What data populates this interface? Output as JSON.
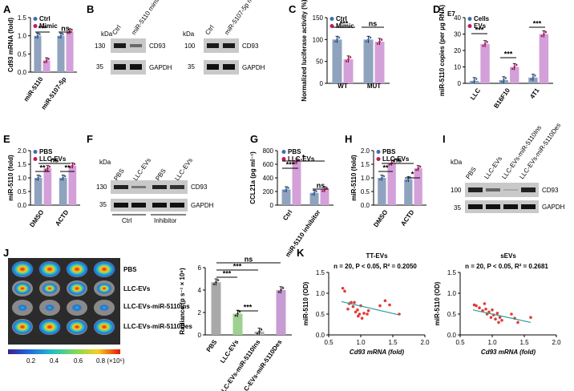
{
  "colors": {
    "ctrl": "#8FA3BE",
    "treat": "#D4A0D9",
    "ctrl_dot": "#3B6FB6",
    "treat_dot": "#C2185B",
    "pbs_bar": "#A9A9A9",
    "llc_bar": "#9ED08F",
    "ins_bar": "#B0B0B0",
    "des_bar": "#C79BD3",
    "fit": "#2A9D9C",
    "pt": "#E53935"
  },
  "panels": {
    "A": "A",
    "B": "B",
    "C": "C",
    "D": "D",
    "E": "E",
    "F": "F",
    "G": "G",
    "H": "H",
    "I": "I",
    "J": "J",
    "K": "K"
  },
  "chart_data": [
    {
      "id": "A",
      "type": "bar",
      "ylabel": "Cd93 mRNA (fold)",
      "ylim": [
        0,
        1.5
      ],
      "yticks": [
        "0.0",
        "0.5",
        "1.0",
        "1.5"
      ],
      "legend": [
        "Ctrl",
        "Mimic"
      ],
      "categories": [
        "miR-5110",
        "miR-5107-5p"
      ],
      "series": [
        {
          "name": "Ctrl",
          "values": [
            1.0,
            1.0
          ]
        },
        {
          "name": "Mimic",
          "values": [
            0.32,
            1.12
          ]
        }
      ],
      "sig": [
        "***",
        "ns"
      ]
    },
    {
      "id": "C",
      "type": "bar",
      "ylabel": "Normalized luciferase activity (%)",
      "ylim": [
        0,
        150
      ],
      "yticks": [
        "0",
        "50",
        "100",
        "150"
      ],
      "legend": [
        "Ctrl",
        "Mimic"
      ],
      "categories": [
        "WT",
        "MUT"
      ],
      "series": [
        {
          "name": "Ctrl",
          "values": [
            100,
            100
          ]
        },
        {
          "name": "Mimic",
          "values": [
            55,
            95
          ]
        }
      ],
      "sig": [
        "***",
        "ns"
      ]
    },
    {
      "id": "D",
      "type": "bar",
      "ylabel": "miR-5110 copies (per µg RNA)",
      "yunit": "E7",
      "ylim": [
        0,
        40
      ],
      "yticks": [
        "0",
        "10",
        "20",
        "30",
        "40"
      ],
      "legend": [
        "Cells",
        "EVs"
      ],
      "categories": [
        "LLC",
        "B16F10",
        "4T1"
      ],
      "series": [
        {
          "name": "Cells",
          "values": [
            1.5,
            2.0,
            3.5
          ]
        },
        {
          "name": "EVs",
          "values": [
            24,
            10,
            30
          ]
        }
      ],
      "sig": [
        "***",
        "***",
        "***"
      ]
    },
    {
      "id": "E",
      "type": "bar",
      "ylabel": "miR-5110 (fold)",
      "ylim": [
        0,
        2.0
      ],
      "yticks": [
        "0.0",
        "0.5",
        "1.0",
        "1.5",
        "2.0"
      ],
      "legend": [
        "PBS",
        "LLC-EVs"
      ],
      "categories": [
        "DMSO",
        "ACTD"
      ],
      "series": [
        {
          "name": "PBS",
          "values": [
            1.0,
            1.0
          ]
        },
        {
          "name": "LLC-EVs",
          "values": [
            1.35,
            1.45
          ]
        }
      ],
      "sig": [
        "**",
        "**",
        "ns"
      ]
    },
    {
      "id": "G",
      "type": "bar",
      "ylabel": "CCL21a (pg ml⁻¹)",
      "ylim": [
        0,
        800
      ],
      "yticks": [
        "0",
        "200",
        "400",
        "600",
        "800"
      ],
      "legend": [
        "PBS",
        "LLC-EVs"
      ],
      "categories": [
        "Ctrl",
        "miR-5110 inhibitor"
      ],
      "series": [
        {
          "name": "PBS",
          "values": [
            230,
            180
          ]
        },
        {
          "name": "LLC-EVs",
          "values": [
            640,
            230
          ]
        }
      ],
      "sig": [
        "***",
        "*",
        "ns"
      ]
    },
    {
      "id": "H",
      "type": "bar",
      "ylabel": "miR-5110 (fold)",
      "ylim": [
        0,
        2.0
      ],
      "yticks": [
        "0.0",
        "0.5",
        "1.0",
        "1.5",
        "2.0"
      ],
      "legend": [
        "PBS",
        "LLC-EVs"
      ],
      "categories": [
        "DMSO",
        "ACTD"
      ],
      "series": [
        {
          "name": "PBS",
          "values": [
            1.0,
            0.95
          ]
        },
        {
          "name": "LLC-EVs",
          "values": [
            1.55,
            1.35
          ]
        }
      ],
      "sig": [
        "**",
        "*",
        "ns"
      ]
    },
    {
      "id": "J",
      "type": "bar",
      "ylabel": "Radiance (p s⁻¹ × 10⁶)",
      "ylim": [
        0,
        6
      ],
      "yticks": [
        "0",
        "2",
        "4",
        "6"
      ],
      "categories": [
        "PBS",
        "LLC-EVs",
        "LLC-EVs-miR-5110Ins",
        "LLC-EVs-miR-5110Des"
      ],
      "values": [
        4.7,
        1.9,
        0.3,
        4.0
      ],
      "sig": [
        "***",
        "***",
        "***",
        "ns"
      ]
    },
    {
      "id": "K1",
      "type": "scatter",
      "title": "TT-EVs",
      "stat": "n = 20, P < 0.05, R² = 0.2050",
      "xlabel": "Cd93 mRNA (fold)",
      "ylabel": "miR-5110 (OD)",
      "xlim": [
        0.5,
        2.0
      ],
      "ylim": [
        0.0,
        1.5
      ],
      "xticks": [
        "0.5",
        "1.0",
        "1.5",
        "2.0"
      ],
      "yticks": [
        "0.0",
        "0.5",
        "1.0",
        "1.5"
      ],
      "fit": [
        [
          0.7,
          0.8
        ],
        [
          1.6,
          0.48
        ]
      ],
      "points": [
        [
          0.72,
          1.12
        ],
        [
          0.75,
          1.05
        ],
        [
          0.8,
          0.62
        ],
        [
          0.82,
          0.75
        ],
        [
          0.85,
          0.78
        ],
        [
          0.88,
          0.68
        ],
        [
          0.9,
          0.78
        ],
        [
          0.92,
          0.55
        ],
        [
          0.95,
          0.6
        ],
        [
          0.96,
          0.45
        ],
        [
          0.98,
          0.5
        ],
        [
          1.0,
          0.7
        ],
        [
          1.02,
          0.4
        ],
        [
          1.05,
          0.52
        ],
        [
          1.1,
          0.5
        ],
        [
          1.12,
          0.58
        ],
        [
          1.3,
          0.7
        ],
        [
          1.38,
          0.82
        ],
        [
          1.45,
          0.72
        ],
        [
          1.6,
          0.5
        ]
      ]
    },
    {
      "id": "K2",
      "type": "scatter",
      "title": "sEVs",
      "stat": "n = 20, P < 0.05, R² = 0.2681",
      "xlabel": "Cd93 mRNA (fold)",
      "ylabel": "miR-5110 (OD)",
      "xlim": [
        0.5,
        2.0
      ],
      "ylim": [
        0.0,
        1.5
      ],
      "xticks": [
        "0.5",
        "1.0",
        "1.5",
        "2.0"
      ],
      "yticks": [
        "0.0",
        "0.5",
        "1.0",
        "1.5"
      ],
      "fit": [
        [
          0.7,
          0.6
        ],
        [
          1.6,
          0.3
        ]
      ],
      "points": [
        [
          0.72,
          0.72
        ],
        [
          0.75,
          0.7
        ],
        [
          0.8,
          0.65
        ],
        [
          0.85,
          0.58
        ],
        [
          0.88,
          0.75
        ],
        [
          0.9,
          0.62
        ],
        [
          0.92,
          0.5
        ],
        [
          0.95,
          0.55
        ],
        [
          0.98,
          0.42
        ],
        [
          1.0,
          0.6
        ],
        [
          1.02,
          0.48
        ],
        [
          1.05,
          0.38
        ],
        [
          1.08,
          0.52
        ],
        [
          1.1,
          0.3
        ],
        [
          1.12,
          0.42
        ],
        [
          1.15,
          0.35
        ],
        [
          1.3,
          0.5
        ],
        [
          1.35,
          0.4
        ],
        [
          1.4,
          0.3
        ],
        [
          1.6,
          0.42
        ]
      ]
    }
  ],
  "blots": {
    "B": {
      "kda_label": "kDa",
      "left_lanes": [
        "Ctrl",
        "miR-5110 mimic"
      ],
      "right_lanes": [
        "Ctrl",
        "miR-5107-5p mimic"
      ],
      "left_mw": [
        "130",
        "35"
      ],
      "right_mw": [
        "100",
        "35"
      ],
      "bands": [
        "CD93",
        "GAPDH"
      ]
    },
    "F": {
      "kda_label": "kDa",
      "lanes": [
        "PBS",
        "LLC-EVs",
        "PBS",
        "LLC-EVs"
      ],
      "mw": [
        "130",
        "35"
      ],
      "bands": [
        "CD93",
        "GAPDH"
      ],
      "groups": [
        "Ctrl",
        "Inhibitor"
      ]
    },
    "I": {
      "kda_label": "kDa",
      "lanes": [
        "PBS",
        "LLC-EVs",
        "LLC-EVs-miR-5110Ins",
        "LLC-EVs-miR-5110Des"
      ],
      "mw": [
        "100",
        "35"
      ],
      "bands": [
        "CD93",
        "GAPDH"
      ]
    }
  },
  "imaging": {
    "rows": [
      "PBS",
      "LLC-EVs",
      "LLC-EVs-miR-5110Ins",
      "LLC-EVs-miR-5110Des"
    ],
    "scale_ticks": [
      "0.2",
      "0.4",
      "0.6",
      "0.8 (×10⁶)"
    ]
  }
}
